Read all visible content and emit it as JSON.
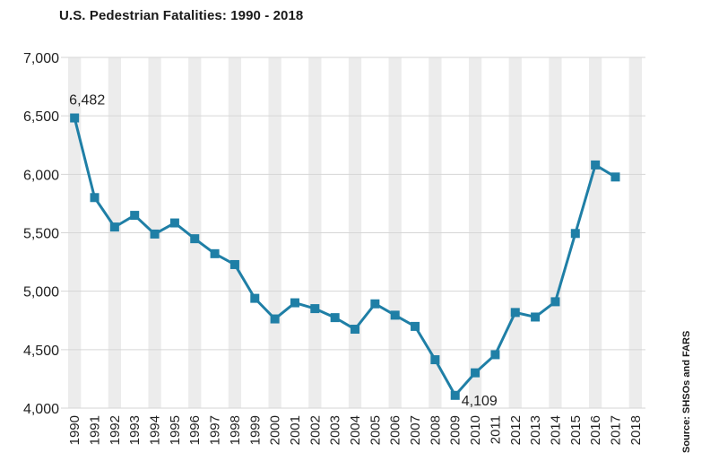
{
  "chart_data": {
    "type": "line",
    "title": "U.S. Pedestrian Fatalities: 1990 - 2018",
    "source": "Source: SHSOs and FARS",
    "xlabel": "",
    "ylabel": "",
    "categories": [
      "1990",
      "1991",
      "1992",
      "1993",
      "1994",
      "1995",
      "1996",
      "1997",
      "1998",
      "1999",
      "2000",
      "2001",
      "2002",
      "2003",
      "2004",
      "2005",
      "2006",
      "2007",
      "2008",
      "2009",
      "2010",
      "2011",
      "2012",
      "2013",
      "2014",
      "2015",
      "2016",
      "2017",
      "2018"
    ],
    "series": [
      {
        "name": "Pedestrian Fatalities",
        "color": "#1f7fa6",
        "values": [
          6482,
          5801,
          5549,
          5649,
          5489,
          5584,
          5449,
          5321,
          5228,
          4939,
          4763,
          4901,
          4851,
          4774,
          4675,
          4892,
          4795,
          4699,
          4414,
          4109,
          4302,
          4457,
          4818,
          4779,
          4910,
          5494,
          6080,
          5977,
          null
        ]
      }
    ],
    "data_labels": [
      {
        "index": 0,
        "text": "6,482"
      },
      {
        "index": 19,
        "text": "4,109"
      }
    ],
    "y_ticks": [
      4000,
      4500,
      5000,
      5500,
      6000,
      6500,
      7000
    ],
    "y_tick_labels": [
      "4,000",
      "4,500",
      "5,000",
      "5,500",
      "6,000",
      "6,500",
      "7,000"
    ],
    "ylim": [
      4000,
      7000
    ],
    "band_color": "#ececec",
    "grid": true
  }
}
